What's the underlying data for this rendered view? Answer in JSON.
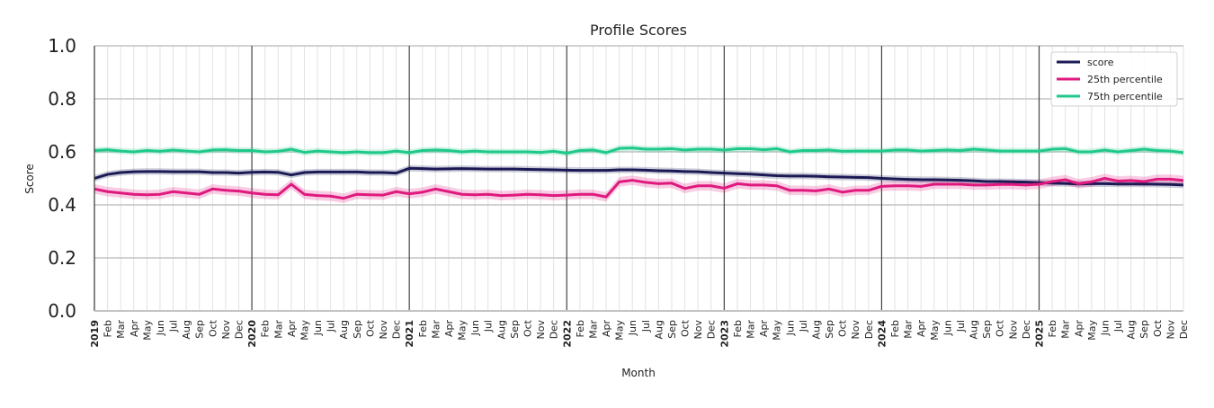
{
  "chart_data": {
    "type": "line",
    "title": "Profile Scores",
    "xlabel": "Month",
    "ylabel": "Score",
    "ylim": [
      0,
      1.0
    ],
    "yticks": [
      "0.0",
      "0.2",
      "0.4",
      "0.6",
      "0.8",
      "1.0"
    ],
    "grid": true,
    "legend_position": "top-right",
    "years": [
      "2019",
      "2020",
      "2021",
      "2022",
      "2023",
      "2024",
      "2025"
    ],
    "month_labels": [
      "Feb",
      "Mar",
      "Apr",
      "May",
      "Jun",
      "Jul",
      "Aug",
      "Sep",
      "Oct",
      "Nov",
      "Dec"
    ],
    "x_start": "2019-01",
    "x_end": "2025-12",
    "series": [
      {
        "name": "score",
        "color": "#1b1a55",
        "band": 0.012,
        "values": [
          0.5,
          0.515,
          0.522,
          0.525,
          0.526,
          0.526,
          0.525,
          0.525,
          0.525,
          0.522,
          0.522,
          0.52,
          0.523,
          0.524,
          0.523,
          0.513,
          0.522,
          0.524,
          0.524,
          0.524,
          0.524,
          0.522,
          0.522,
          0.52,
          0.538,
          0.537,
          0.535,
          0.536,
          0.537,
          0.536,
          0.535,
          0.535,
          0.535,
          0.534,
          0.533,
          0.532,
          0.531,
          0.53,
          0.53,
          0.53,
          0.532,
          0.532,
          0.531,
          0.529,
          0.528,
          0.526,
          0.525,
          0.522,
          0.52,
          0.518,
          0.516,
          0.513,
          0.51,
          0.509,
          0.509,
          0.508,
          0.506,
          0.505,
          0.504,
          0.503,
          0.5,
          0.498,
          0.496,
          0.495,
          0.495,
          0.494,
          0.493,
          0.491,
          0.488,
          0.488,
          0.487,
          0.486,
          0.484,
          0.482,
          0.481,
          0.479,
          0.48,
          0.48,
          0.479,
          0.479,
          0.479,
          0.478,
          0.477,
          0.475
        ]
      },
      {
        "name": "25th percentile",
        "color": "#e0197f",
        "band": 0.018,
        "values": [
          0.46,
          0.45,
          0.445,
          0.44,
          0.438,
          0.44,
          0.45,
          0.445,
          0.44,
          0.46,
          0.455,
          0.452,
          0.445,
          0.44,
          0.438,
          0.478,
          0.44,
          0.435,
          0.433,
          0.425,
          0.44,
          0.438,
          0.437,
          0.45,
          0.442,
          0.448,
          0.46,
          0.45,
          0.44,
          0.438,
          0.44,
          0.435,
          0.437,
          0.44,
          0.438,
          0.435,
          0.437,
          0.44,
          0.44,
          0.43,
          0.487,
          0.493,
          0.485,
          0.48,
          0.482,
          0.462,
          0.472,
          0.472,
          0.463,
          0.48,
          0.475,
          0.475,
          0.472,
          0.455,
          0.455,
          0.453,
          0.46,
          0.448,
          0.455,
          0.455,
          0.47,
          0.472,
          0.472,
          0.47,
          0.478,
          0.478,
          0.478,
          0.475,
          0.475,
          0.477,
          0.477,
          0.475,
          0.478,
          0.488,
          0.495,
          0.48,
          0.487,
          0.5,
          0.49,
          0.492,
          0.488,
          0.497,
          0.497,
          0.492
        ]
      },
      {
        "name": "75th percentile",
        "color": "#1fc98a",
        "band": 0.012,
        "values": [
          0.605,
          0.608,
          0.603,
          0.6,
          0.605,
          0.602,
          0.607,
          0.603,
          0.6,
          0.607,
          0.608,
          0.605,
          0.605,
          0.6,
          0.602,
          0.61,
          0.598,
          0.603,
          0.6,
          0.597,
          0.6,
          0.597,
          0.597,
          0.603,
          0.597,
          0.605,
          0.607,
          0.605,
          0.6,
          0.603,
          0.6,
          0.6,
          0.6,
          0.6,
          0.598,
          0.602,
          0.595,
          0.605,
          0.607,
          0.597,
          0.613,
          0.615,
          0.61,
          0.61,
          0.612,
          0.607,
          0.61,
          0.61,
          0.607,
          0.612,
          0.612,
          0.608,
          0.612,
          0.6,
          0.605,
          0.605,
          0.607,
          0.602,
          0.603,
          0.603,
          0.603,
          0.607,
          0.607,
          0.603,
          0.605,
          0.607,
          0.605,
          0.61,
          0.607,
          0.603,
          0.603,
          0.603,
          0.603,
          0.61,
          0.612,
          0.6,
          0.6,
          0.607,
          0.6,
          0.605,
          0.61,
          0.605,
          0.603,
          0.597
        ]
      }
    ]
  }
}
